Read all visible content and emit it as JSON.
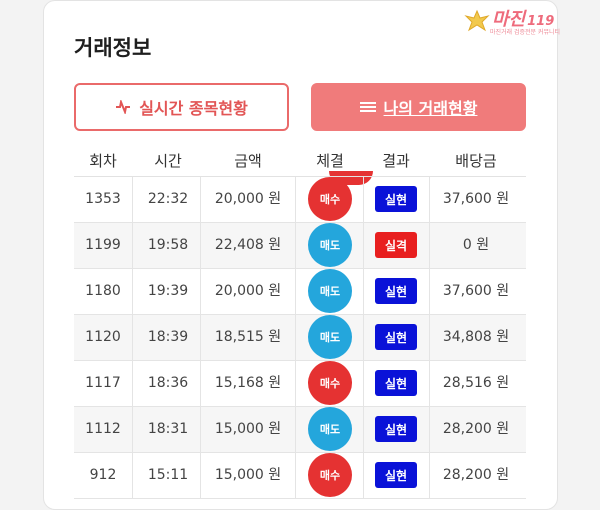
{
  "logo": {
    "text": "마진",
    "number": "119",
    "sub": "마진거래 검증전문 커뮤니티"
  },
  "title": "거래정보",
  "buttons": {
    "live": "실시간 종목현황",
    "mine": "나의 거래현황"
  },
  "columns": [
    "회차",
    "시간",
    "금액",
    "체결",
    "결과",
    "배당금"
  ],
  "colors": {
    "buy": "#e53232",
    "sell": "#24a6dc",
    "win": "#0a12d8",
    "lose": "#e81f1f",
    "accent": "#f07b7b"
  },
  "rows": [
    {
      "round": "1353",
      "time": "22:32",
      "amount": "20,000 원",
      "trade": "매수",
      "trade_type": "buy",
      "result": "실현",
      "result_type": "win",
      "payout": "37,600 원"
    },
    {
      "round": "1199",
      "time": "19:58",
      "amount": "22,408 원",
      "trade": "매도",
      "trade_type": "sell",
      "result": "실격",
      "result_type": "lose",
      "payout": "0 원"
    },
    {
      "round": "1180",
      "time": "19:39",
      "amount": "20,000 원",
      "trade": "매도",
      "trade_type": "sell",
      "result": "실현",
      "result_type": "win",
      "payout": "37,600 원"
    },
    {
      "round": "1120",
      "time": "18:39",
      "amount": "18,515 원",
      "trade": "매도",
      "trade_type": "sell",
      "result": "실현",
      "result_type": "win",
      "payout": "34,808 원"
    },
    {
      "round": "1117",
      "time": "18:36",
      "amount": "15,168 원",
      "trade": "매수",
      "trade_type": "buy",
      "result": "실현",
      "result_type": "win",
      "payout": "28,516 원"
    },
    {
      "round": "1112",
      "time": "18:31",
      "amount": "15,000 원",
      "trade": "매도",
      "trade_type": "sell",
      "result": "실현",
      "result_type": "win",
      "payout": "28,200 원"
    },
    {
      "round": "912",
      "time": "15:11",
      "amount": "15,000 원",
      "trade": "매수",
      "trade_type": "buy",
      "result": "실현",
      "result_type": "win",
      "payout": "28,200 원"
    }
  ]
}
